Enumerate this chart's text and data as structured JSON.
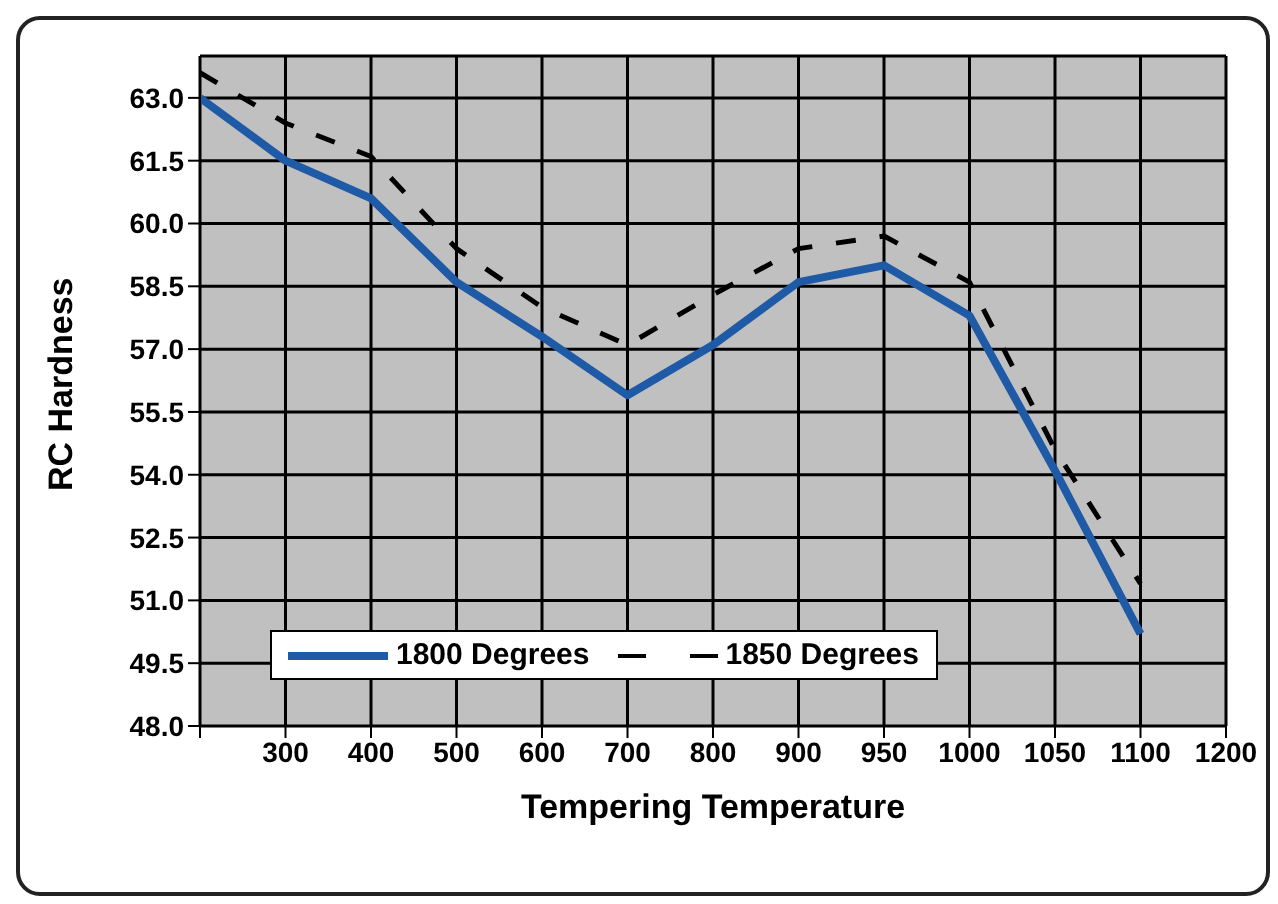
{
  "chart_data": {
    "type": "line",
    "xlabel": "Tempering Temperature",
    "ylabel": "RC Hardness",
    "categories": [
      null,
      "300",
      "400",
      "500",
      "600",
      "700",
      "800",
      "900",
      "950",
      "1000",
      "1050",
      "1100",
      "1200"
    ],
    "series": [
      {
        "name": "1800 Degrees",
        "color": "#1f5aa6",
        "line_style": "solid",
        "values": [
          63.0,
          61.5,
          60.6,
          58.6,
          57.3,
          55.9,
          57.1,
          58.6,
          59.0,
          57.8,
          54.1,
          50.2,
          null
        ]
      },
      {
        "name": "1850 Degrees",
        "color": "#000000",
        "line_style": "dashed",
        "values": [
          63.6,
          62.4,
          61.6,
          59.4,
          58.0,
          57.1,
          58.3,
          59.4,
          59.7,
          58.6,
          54.6,
          51.4,
          null
        ]
      }
    ],
    "ylim": [
      48,
      64
    ],
    "yticks": [
      {
        "value": 48,
        "label": "48.0"
      },
      {
        "value": 49.5,
        "label": "49.5"
      },
      {
        "value": 51,
        "label": "51.0"
      },
      {
        "value": 52.5,
        "label": "52.5"
      },
      {
        "value": 54,
        "label": "54.0"
      },
      {
        "value": 55.5,
        "label": "55.5"
      },
      {
        "value": 57,
        "label": "57.0"
      },
      {
        "value": 58.5,
        "label": "58.5"
      },
      {
        "value": 60,
        "label": "60.0"
      },
      {
        "value": 61.5,
        "label": "61.5"
      },
      {
        "value": 63,
        "label": "63.0"
      }
    ],
    "grid": true,
    "legend": "bottom left",
    "marker": "none"
  }
}
